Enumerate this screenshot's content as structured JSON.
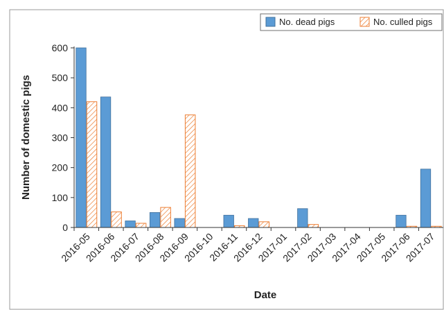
{
  "chart_data": {
    "type": "bar",
    "title": "",
    "xlabel": "Date",
    "ylabel": "Number of domestic pigs",
    "ylim": [
      0,
      600
    ],
    "yticks": [
      0,
      100,
      200,
      300,
      400,
      500,
      600
    ],
    "grid": false,
    "legend_position": "top-right",
    "categories": [
      "2016-05",
      "2016-06",
      "2016-07",
      "2016-08",
      "2016-09",
      "2016-10",
      "2016-11",
      "2016-12",
      "2017-01",
      "2017-02",
      "2017-03",
      "2017-04",
      "2017-05",
      "2017-06",
      "2017-07"
    ],
    "series": [
      {
        "name": "No. dead pigs",
        "color": "#5b9bd5",
        "pattern": "solid",
        "values": [
          600,
          436,
          22,
          50,
          30,
          0,
          41,
          30,
          0,
          63,
          0,
          0,
          0,
          41,
          195
        ]
      },
      {
        "name": "No. culled pigs",
        "color": "#ed7d31",
        "pattern": "hatched",
        "values": [
          420,
          52,
          14,
          67,
          376,
          0,
          6,
          19,
          0,
          10,
          0,
          0,
          0,
          4,
          4
        ]
      }
    ]
  }
}
